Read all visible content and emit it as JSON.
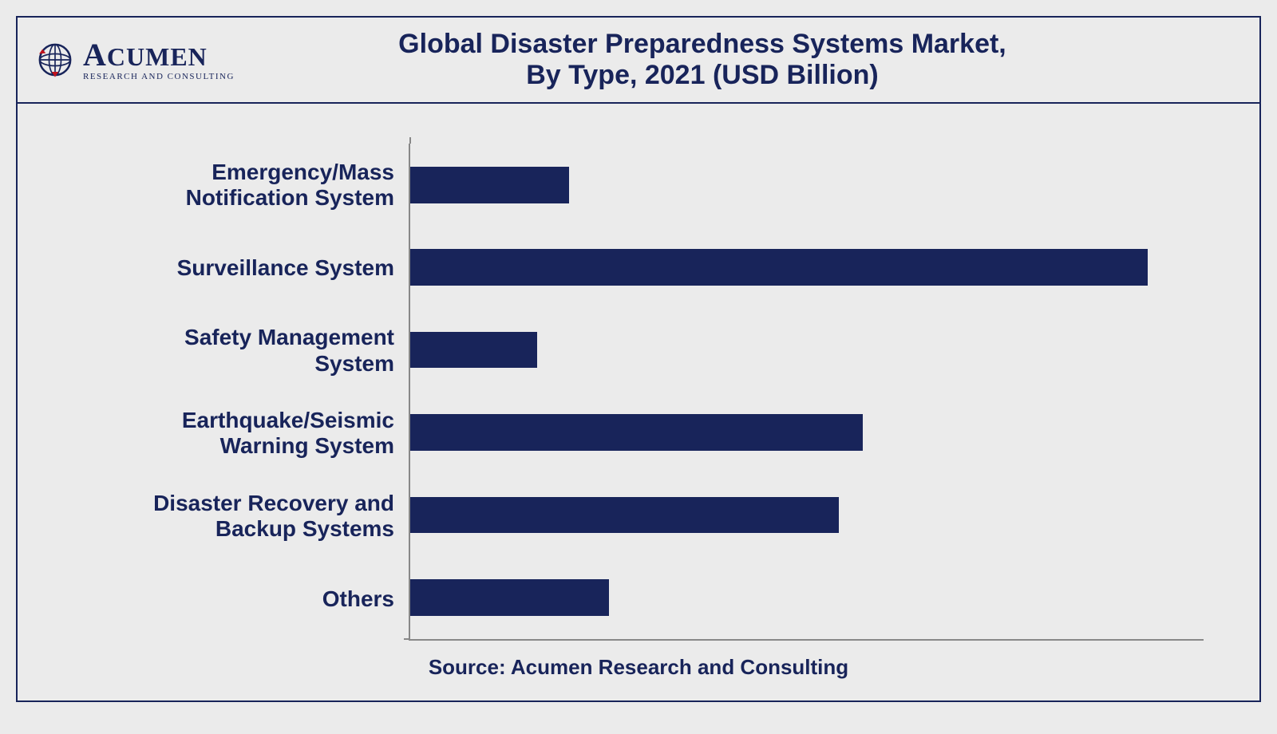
{
  "header": {
    "logo": {
      "name_prefix_big": "A",
      "name_rest": "CUMEN",
      "tagline": "RESEARCH AND CONSULTING",
      "globe_stroke": "#18245a",
      "globe_accent": "#c0121c"
    },
    "title_line1": "Global Disaster Preparedness Systems Market,",
    "title_line2": "By Type, 2021 (USD Billion)",
    "title_fontsize": 34,
    "title_color": "#18245a"
  },
  "chart": {
    "type": "bar_horizontal",
    "bar_color": "#18245a",
    "axis_color": "#888888",
    "background_color": "#ebebeb",
    "xlim": [
      0,
      100
    ],
    "label_fontsize": 28,
    "label_color": "#18245a",
    "bar_height_ratio": 0.44,
    "categories": [
      {
        "label_line1": "Emergency/Mass",
        "label_line2": "Notification System",
        "value": 20
      },
      {
        "label_line1": "Surveillance System",
        "label_line2": "",
        "value": 93
      },
      {
        "label_line1": "Safety Management",
        "label_line2": "System",
        "value": 16
      },
      {
        "label_line1": "Earthquake/Seismic",
        "label_line2": "Warning System",
        "value": 57
      },
      {
        "label_line1": "Disaster Recovery and",
        "label_line2": "Backup Systems",
        "value": 54
      },
      {
        "label_line1": "Others",
        "label_line2": "",
        "value": 25
      }
    ]
  },
  "footer": {
    "source_text": "Source: Acumen Research and Consulting",
    "source_fontsize": 26,
    "source_color": "#18245a"
  }
}
